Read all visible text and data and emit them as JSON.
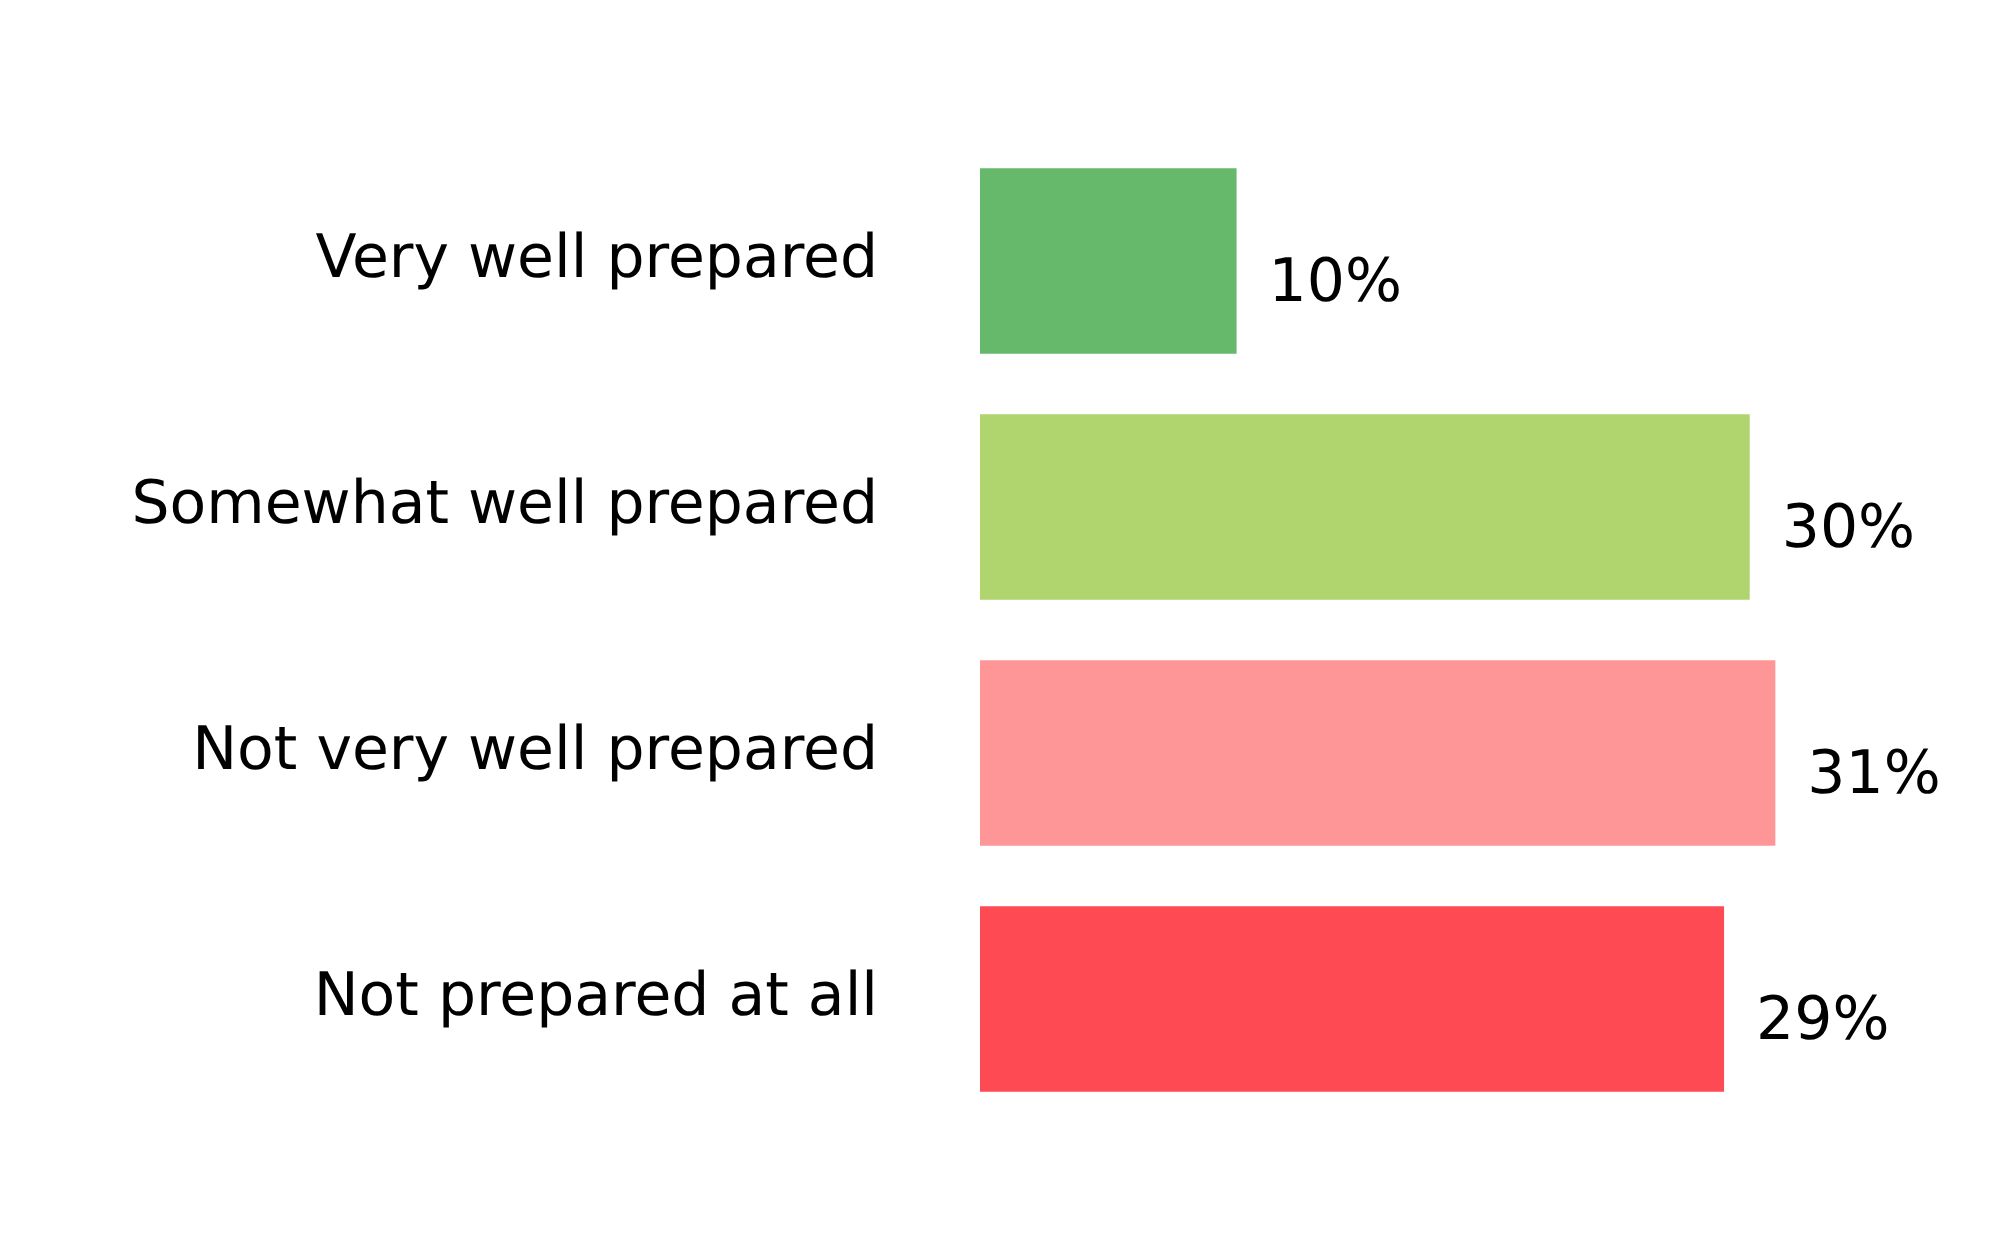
{
  "chart_data": {
    "type": "bar",
    "orientation": "horizontal",
    "categories": [
      "Very well prepared",
      "Somewhat well prepared",
      "Not very well prepared",
      "Not prepared at all"
    ],
    "values": [
      10,
      30,
      31,
      29
    ],
    "colors": [
      "#66b86a",
      "#b0d46e",
      "#fe9698",
      "#fe4a52"
    ],
    "value_labels": [
      "10%",
      "30%",
      "31%",
      "29%"
    ]
  }
}
